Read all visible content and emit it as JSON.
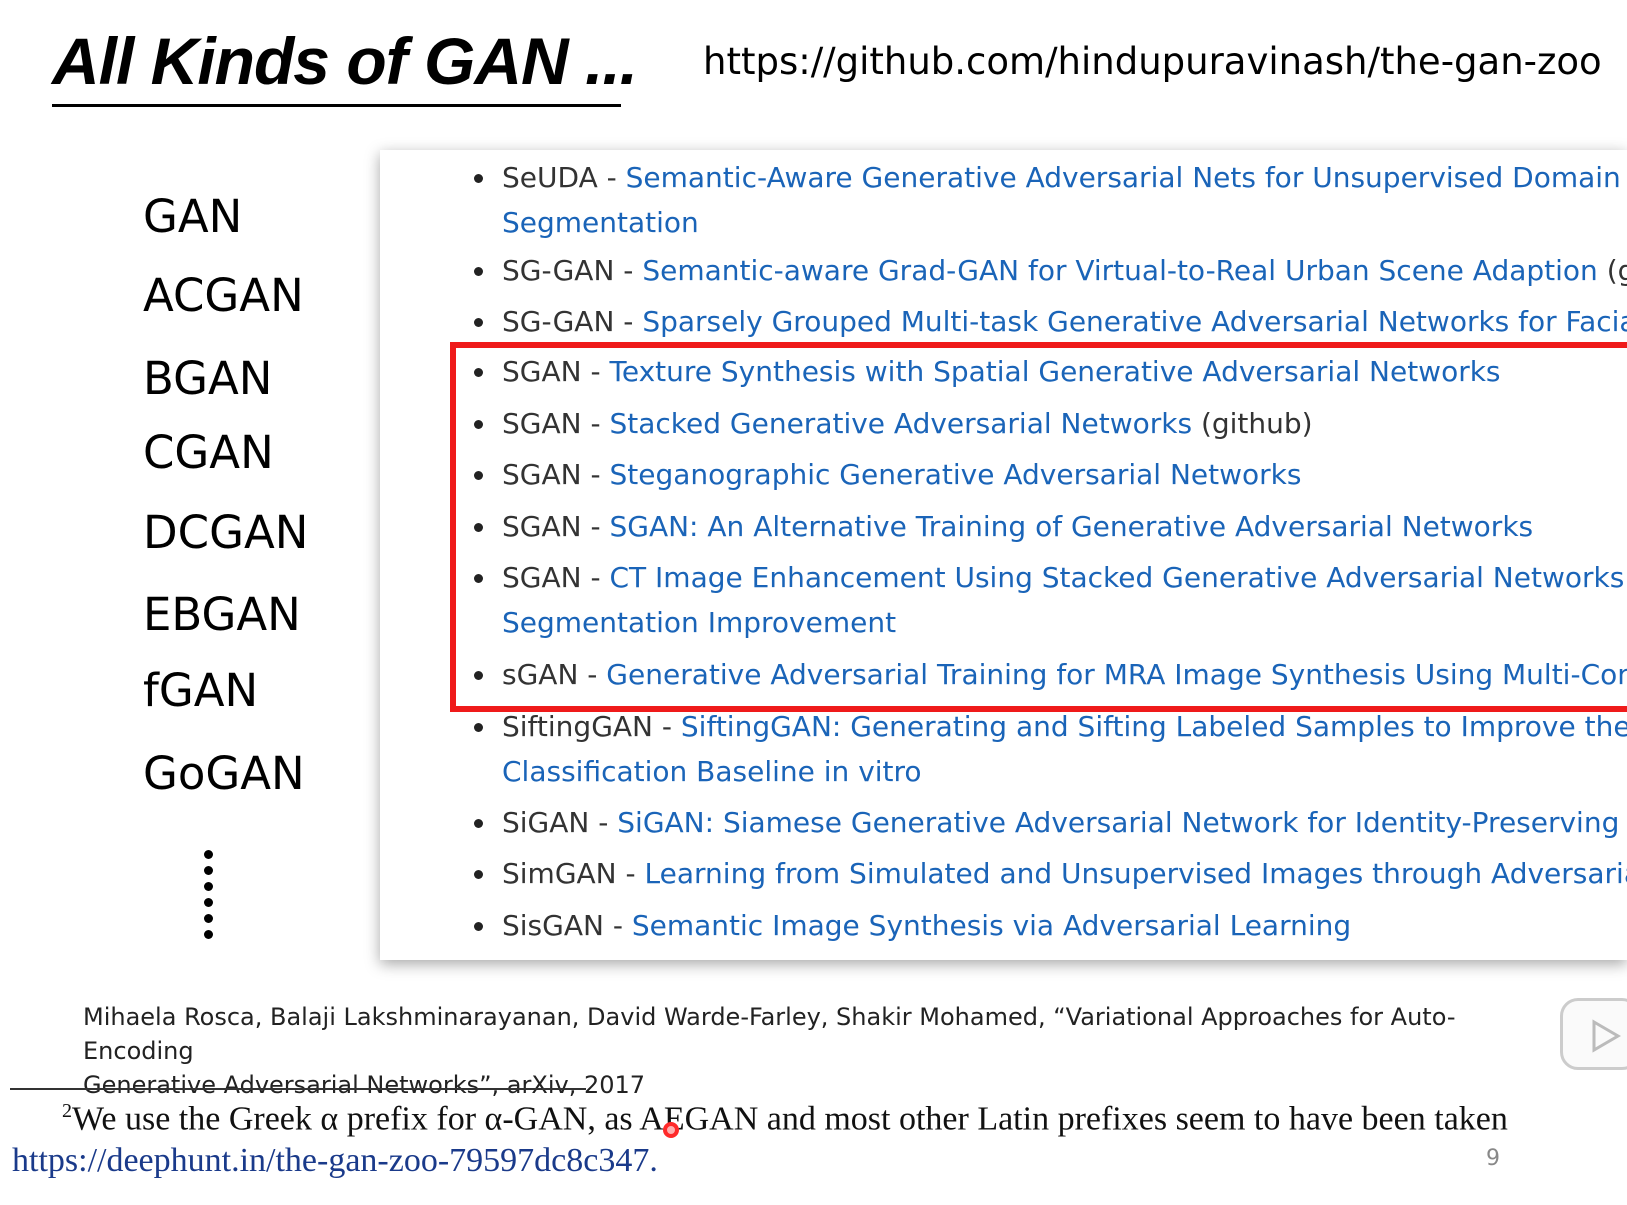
{
  "title": "All Kinds of GAN ...",
  "url": "https://github.com/hindupuravinash/the-gan-zoo",
  "gan_names": [
    "GAN",
    "ACGAN",
    "BGAN",
    "CGAN",
    "DCGAN",
    "EBGAN",
    "fGAN",
    "GoGAN"
  ],
  "zoo_entries": [
    {
      "name": "SeUDA",
      "sep": " - ",
      "link": "Semantic-Aware Generative Adversarial Nets for Unsupervised Domain Adap",
      "link2": "Segmentation",
      "extra": ""
    },
    {
      "name": "SG-GAN",
      "sep": " - ",
      "link": "Semantic-aware Grad-GAN for Virtual-to-Real Urban Scene Adaption",
      "link2": "",
      "extra": " (githu"
    },
    {
      "name": "SG-GAN",
      "sep": " - ",
      "link": "Sparsely Grouped Multi-task Generative Adversarial Networks for Facial Att",
      "link2": "",
      "extra": ""
    },
    {
      "name": "SGAN",
      "sep": " - ",
      "link": "Texture Synthesis with Spatial Generative Adversarial Networks",
      "link2": "",
      "extra": ""
    },
    {
      "name": "SGAN",
      "sep": " - ",
      "link": "Stacked Generative Adversarial Networks",
      "link2": "",
      "extra": " (github)"
    },
    {
      "name": "SGAN",
      "sep": " - ",
      "link": "Steganographic Generative Adversarial Networks",
      "link2": "",
      "extra": ""
    },
    {
      "name": "SGAN",
      "sep": " - ",
      "link": "SGAN: An Alternative Training of Generative Adversarial Networks",
      "link2": "",
      "extra": ""
    },
    {
      "name": "SGAN",
      "sep": " - ",
      "link": "CT Image Enhancement Using Stacked Generative Adversarial Networks and T",
      "link2": "Segmentation Improvement",
      "extra": ""
    },
    {
      "name": "sGAN",
      "sep": " - ",
      "link": "Generative Adversarial Training for MRA Image Synthesis Using Multi-Contras",
      "link2": "",
      "extra": ""
    },
    {
      "name": "SiftingGAN",
      "sep": " - ",
      "link": "SiftingGAN: Generating and Sifting Labeled Samples to Improve the Rem",
      "link2": "Classification Baseline in vitro",
      "extra": ""
    },
    {
      "name": "SiGAN",
      "sep": " - ",
      "link": "SiGAN: Siamese Generative Adversarial Network for Identity-Preserving Face",
      "link2": "",
      "extra": ""
    },
    {
      "name": "SimGAN",
      "sep": " - ",
      "link": "Learning from Simulated and Unsupervised Images through Adversarial Tra",
      "link2": "",
      "extra": ""
    },
    {
      "name": "SisGAN",
      "sep": " - ",
      "link": "Semantic Image Synthesis via Adversarial Learning",
      "link2": "",
      "extra": ""
    }
  ],
  "citation": {
    "authors": "Mihaela Rosca, Balaji Lakshminarayanan, David Warde-Farley, Shakir Mohamed, “Variational Approaches for Auto-Encoding",
    "rest": "Generative Adversarial Networks”, arXiv, 2017"
  },
  "footnote": {
    "marker": "2",
    "text": "We use the Greek α prefix for α-GAN, as AEGAN and most other Latin prefixes seem to have been taken",
    "link": "https://deephunt.in/the-gan-zoo-79597dc8c347."
  },
  "page_number": "9",
  "colors": {
    "highlight": "#ef1a1a",
    "link": "#1a64b8"
  },
  "icons": {
    "player": "play-icon"
  }
}
